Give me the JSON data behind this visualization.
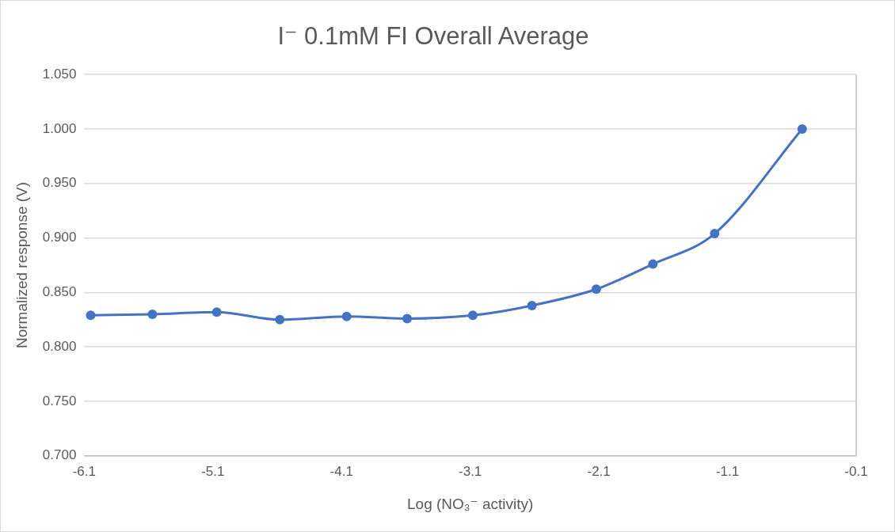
{
  "chart_data": {
    "type": "line",
    "title": "I⁻ 0.1mM FI Overall Average",
    "xlabel": "Log (NO₃⁻ activity)",
    "ylabel": "Normalized response (V)",
    "x": [
      -6.05,
      -5.57,
      -5.07,
      -4.58,
      -4.06,
      -3.59,
      -3.08,
      -2.62,
      -2.12,
      -1.68,
      -1.2,
      -0.52
    ],
    "series": [
      {
        "color": "#4472c4",
        "values": [
          0.829,
          0.83,
          0.832,
          0.825,
          0.828,
          0.826,
          0.829,
          0.838,
          0.853,
          0.876,
          0.904,
          1.0
        ]
      }
    ],
    "xlim": [
      -6.1,
      -0.1
    ],
    "xticks": [
      -6.1,
      -5.1,
      -4.1,
      -3.1,
      -2.1,
      -1.1,
      -0.1
    ],
    "ylim": [
      0.7,
      1.05
    ],
    "yticks": [
      {
        "value": 0.7,
        "label": "0.700"
      },
      {
        "value": 0.75,
        "label": "0.750"
      },
      {
        "value": 0.8,
        "label": "0.800"
      },
      {
        "value": 0.85,
        "label": "0.850"
      },
      {
        "value": 0.9,
        "label": "0.900"
      },
      {
        "value": 0.95,
        "label": "0.950"
      },
      {
        "value": 1.0,
        "label": "1.000"
      },
      {
        "value": 1.05,
        "label": "1.050"
      }
    ],
    "grid": "y",
    "marker": "circle",
    "line_style": "solid",
    "legend": false
  }
}
